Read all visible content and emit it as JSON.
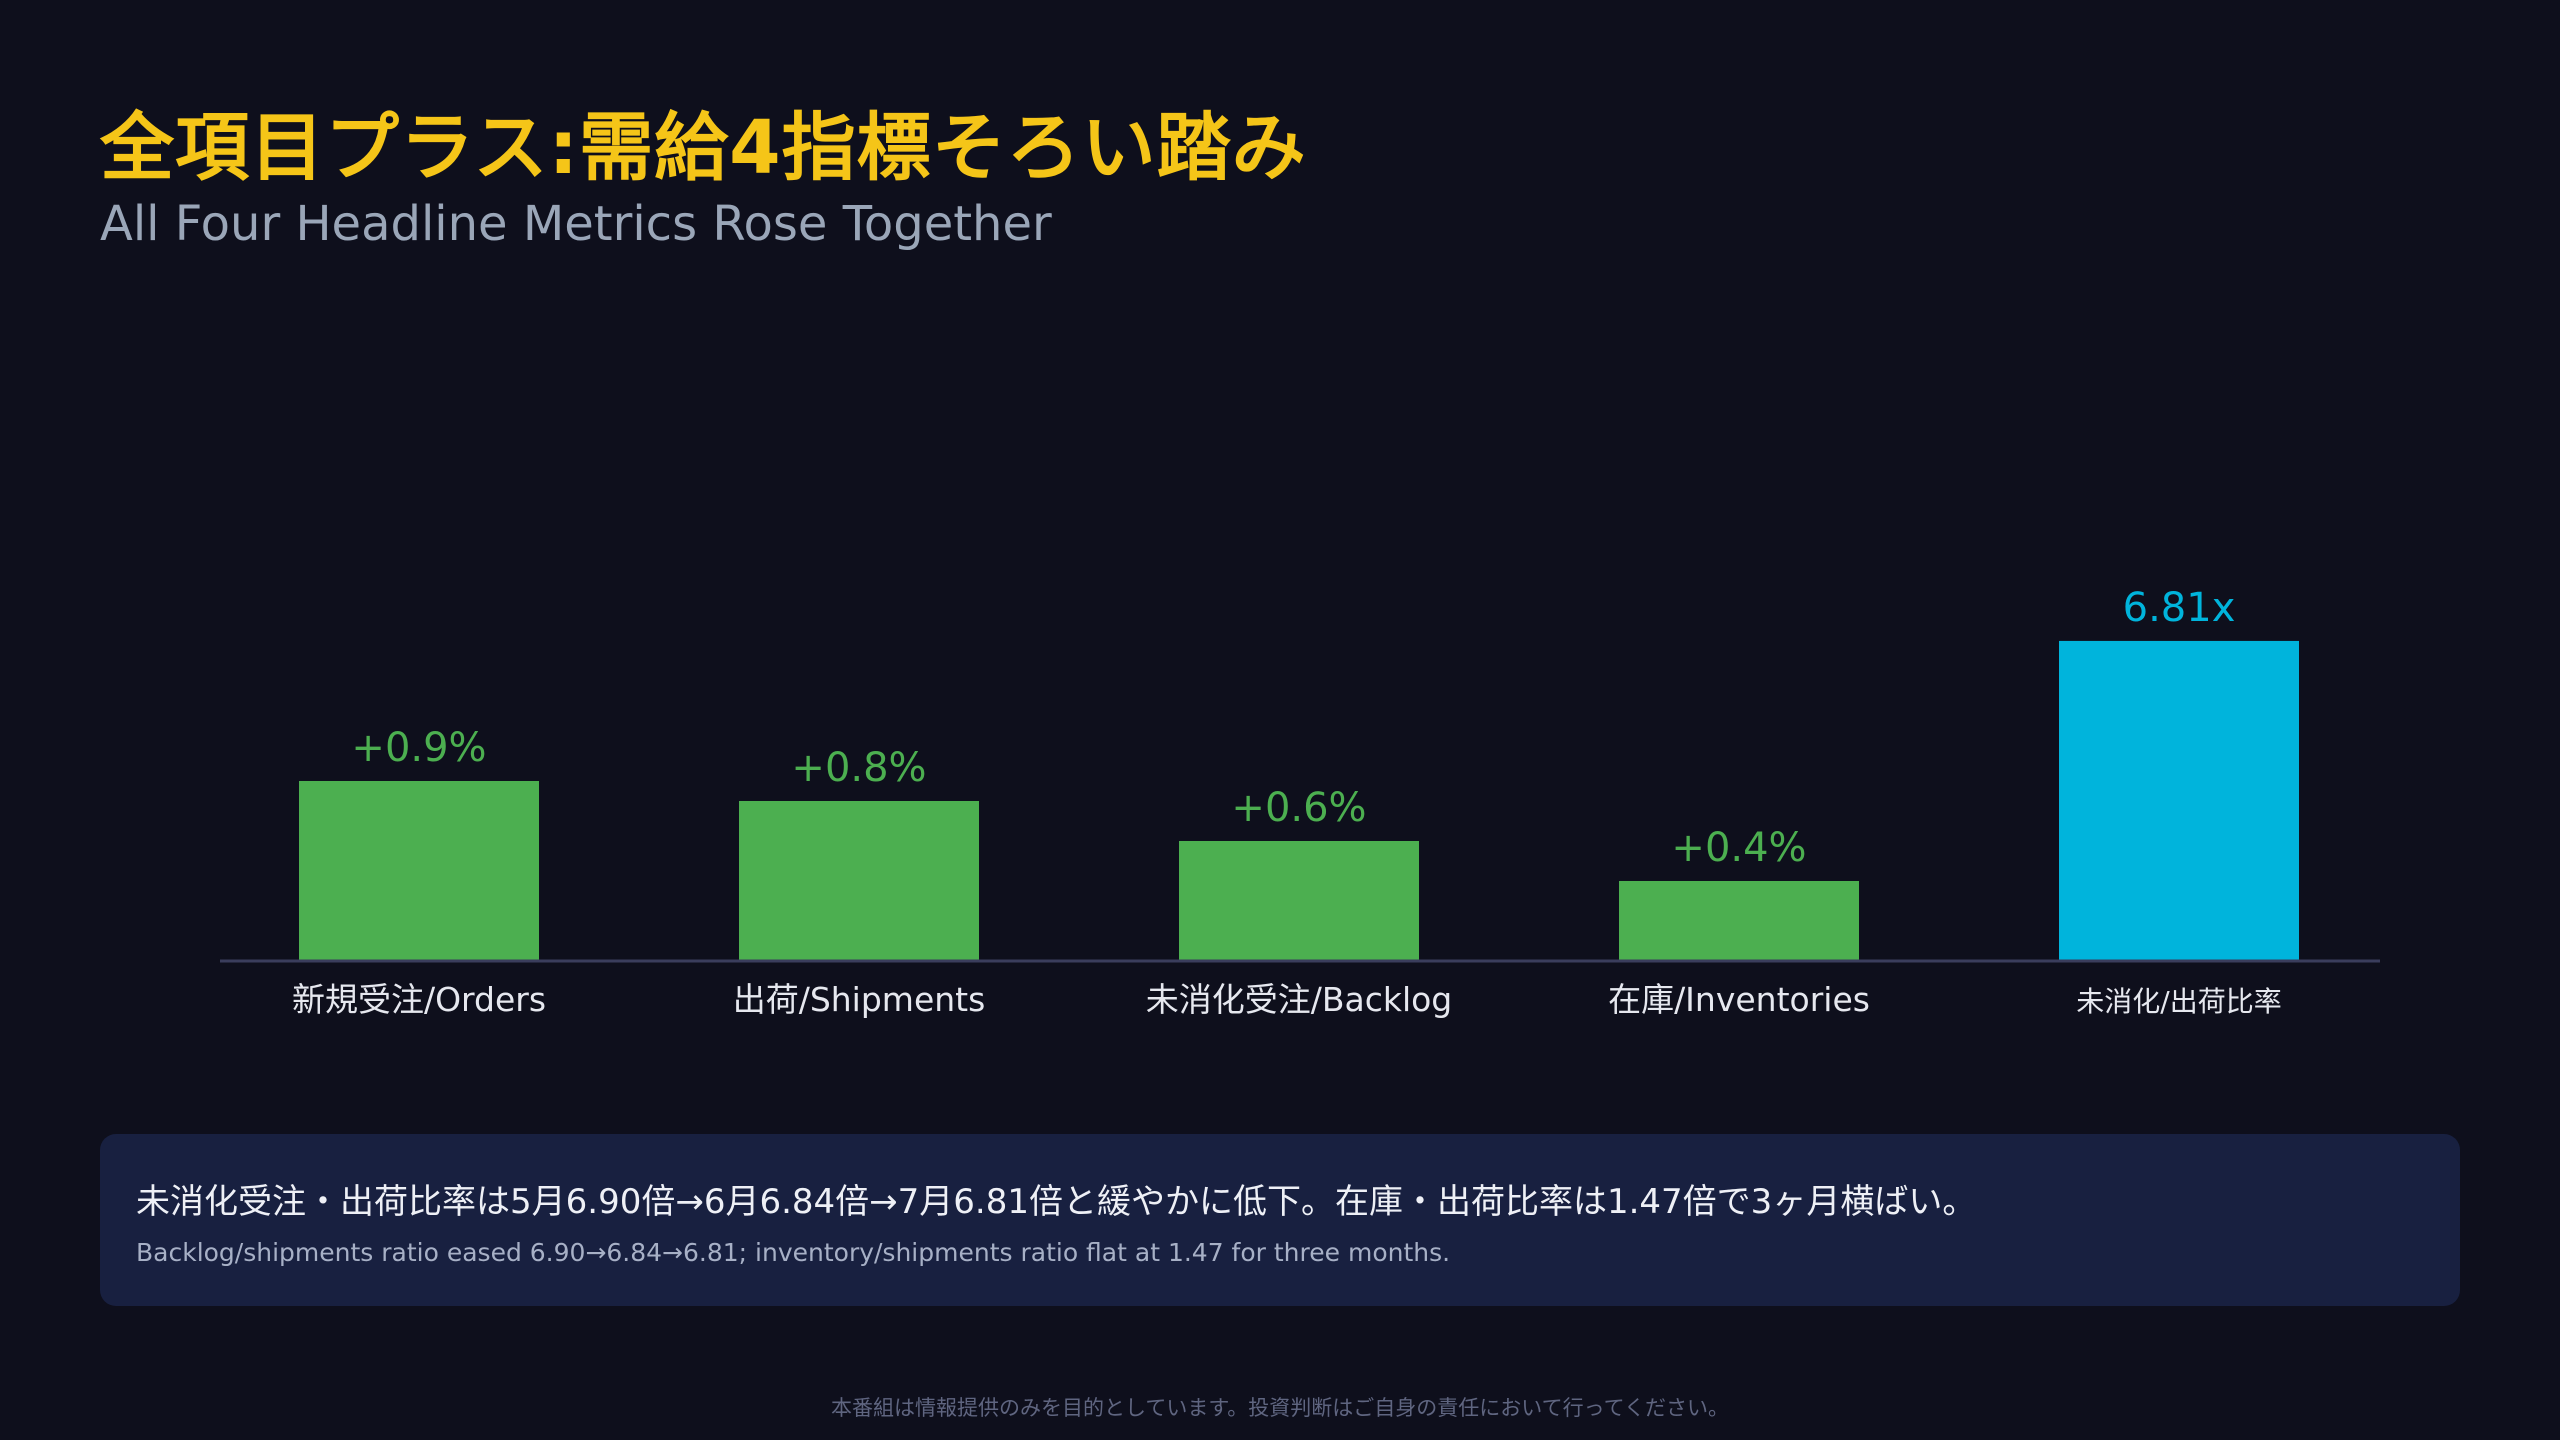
{
  "header": {
    "title": "全項目プラス:需給4指標そろい踏み",
    "subtitle": "All Four Headline Metrics Rose Together"
  },
  "colors": {
    "background": "#0e0f1c",
    "title": "#f5c518",
    "positive_bar": "#4caf50",
    "ratio_bar": "#00b4dc",
    "baseline": "#3a3d5c",
    "note_box": "#182040"
  },
  "chart_data": {
    "type": "bar",
    "categories": [
      "新規受注/Orders",
      "出荷/Shipments",
      "未消化受注/Backlog",
      "在庫/Inventories",
      "未消化/出荷比率"
    ],
    "values": [
      0.9,
      0.8,
      0.6,
      0.4,
      6.81
    ],
    "value_labels": [
      "+0.9%",
      "+0.8%",
      "+0.6%",
      "+0.4%",
      "6.81x"
    ],
    "bar_colors": [
      "#4caf50",
      "#4caf50",
      "#4caf50",
      "#4caf50",
      "#00b4dc"
    ],
    "title": "",
    "xlabel": "",
    "ylabel": "",
    "grid": false,
    "legend": "none"
  },
  "note": {
    "main": "未消化受注・出荷比率は5月6.90倍→6月6.84倍→7月6.81倍と緩やかに低下。在庫・出荷比率は1.47倍で3ヶ月横ばい。",
    "sub": "Backlog/shipments ratio eased 6.90→6.84→6.81; inventory/shipments ratio flat at 1.47 for three months."
  },
  "footer": {
    "disclaimer": "本番組は情報提供のみを目的としています。投資判断はご自身の責任において行ってください。"
  }
}
